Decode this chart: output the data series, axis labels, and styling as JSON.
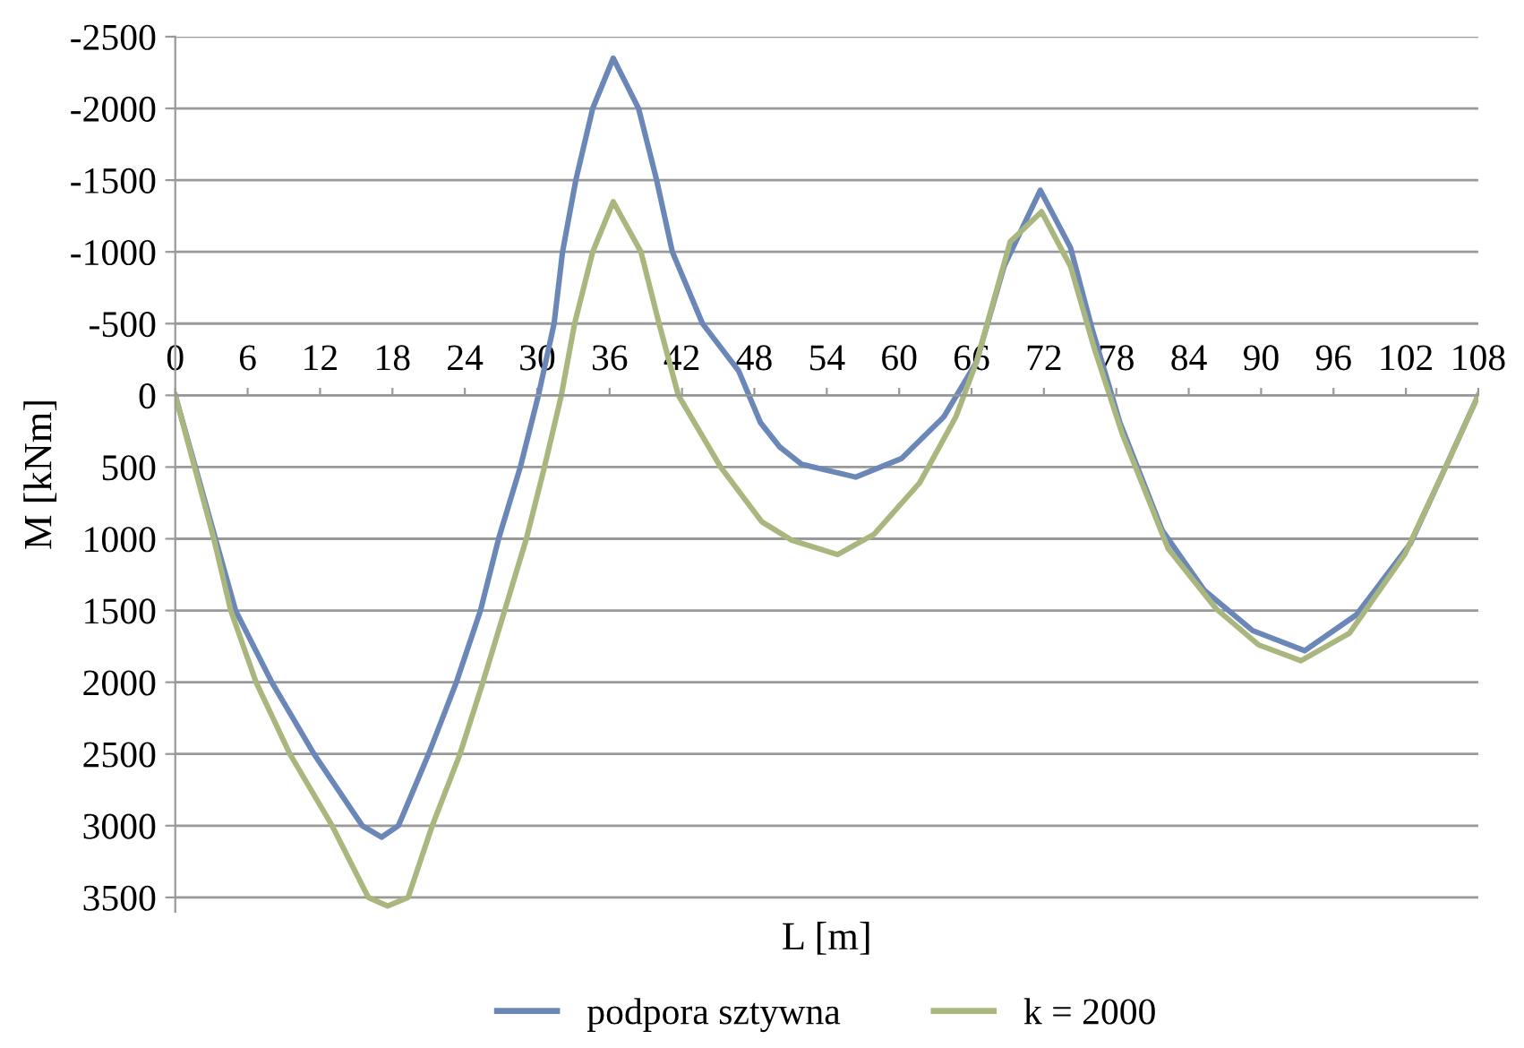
{
  "chart_data": {
    "type": "line",
    "xlabel": "L [m]",
    "ylabel": "M [kNm]",
    "xlim": [
      0,
      108
    ],
    "xticks": [
      0,
      6,
      12,
      18,
      24,
      30,
      36,
      42,
      48,
      54,
      60,
      66,
      72,
      78,
      84,
      90,
      96,
      102,
      108
    ],
    "ylim": [
      3600,
      -2500
    ],
    "yticks": [
      -2500,
      -2000,
      -1500,
      -1000,
      -500,
      0,
      500,
      1000,
      1500,
      2000,
      2500,
      3000,
      3500
    ],
    "grid": "y",
    "legend": "bottom",
    "marker": "none",
    "line_style": "solid",
    "series": [
      {
        "name": "podpora sztywna",
        "color": "#6b87b8",
        "x": [
          0,
          5,
          8,
          11.5,
          15.5,
          17.1,
          18.5,
          21,
          23.3,
          25.3,
          26.8,
          28.6,
          30.1,
          31.4,
          32.1,
          33.2,
          34.6,
          36.3,
          38.4,
          39.9,
          41.2,
          43.7,
          46.7,
          48.5,
          50.1,
          51.9,
          56.4,
          60.2,
          63.7,
          66.4,
          68.7,
          71.7,
          74.2,
          76,
          78.3,
          81.8,
          85.3,
          89.3,
          93.6,
          97.9,
          102.4,
          105.4,
          108
        ],
        "values": [
          0,
          1500,
          2000,
          2500,
          3000,
          3080,
          3000,
          2500,
          2000,
          1500,
          1000,
          500,
          0,
          -500,
          -1000,
          -1500,
          -2000,
          -2350,
          -2000,
          -1500,
          -1000,
          -500,
          -170,
          190,
          360,
          480,
          570,
          440,
          150,
          -230,
          -900,
          -1430,
          -1030,
          -460,
          190,
          940,
          1360,
          1640,
          1780,
          1530,
          1030,
          480,
          0
        ]
      },
      {
        "name": "k = 2000",
        "color": "#a9b77f",
        "x": [
          0,
          3.2,
          4.6,
          6.7,
          9.5,
          13,
          16,
          17.6,
          19.3,
          21.3,
          23.6,
          25.5,
          27.3,
          29.1,
          30.6,
          32,
          33.1,
          34.6,
          36.3,
          38.6,
          40.1,
          41.7,
          45.2,
          48.6,
          51.1,
          54.9,
          57.9,
          61.7,
          64.7,
          66.4,
          69.2,
          71.8,
          74.2,
          76.2,
          78.5,
          82.3,
          86.3,
          89.8,
          93.3,
          97.3,
          101.9,
          105.4,
          108
        ],
        "values": [
          0,
          1000,
          1500,
          2000,
          2500,
          3000,
          3500,
          3560,
          3500,
          3000,
          2500,
          2000,
          1500,
          1000,
          500,
          0,
          -500,
          -1000,
          -1350,
          -1000,
          -500,
          0,
          500,
          880,
          1010,
          1110,
          970,
          610,
          150,
          -230,
          -1070,
          -1280,
          -900,
          -320,
          270,
          1070,
          1490,
          1740,
          1850,
          1660,
          1110,
          480,
          0
        ]
      }
    ]
  }
}
